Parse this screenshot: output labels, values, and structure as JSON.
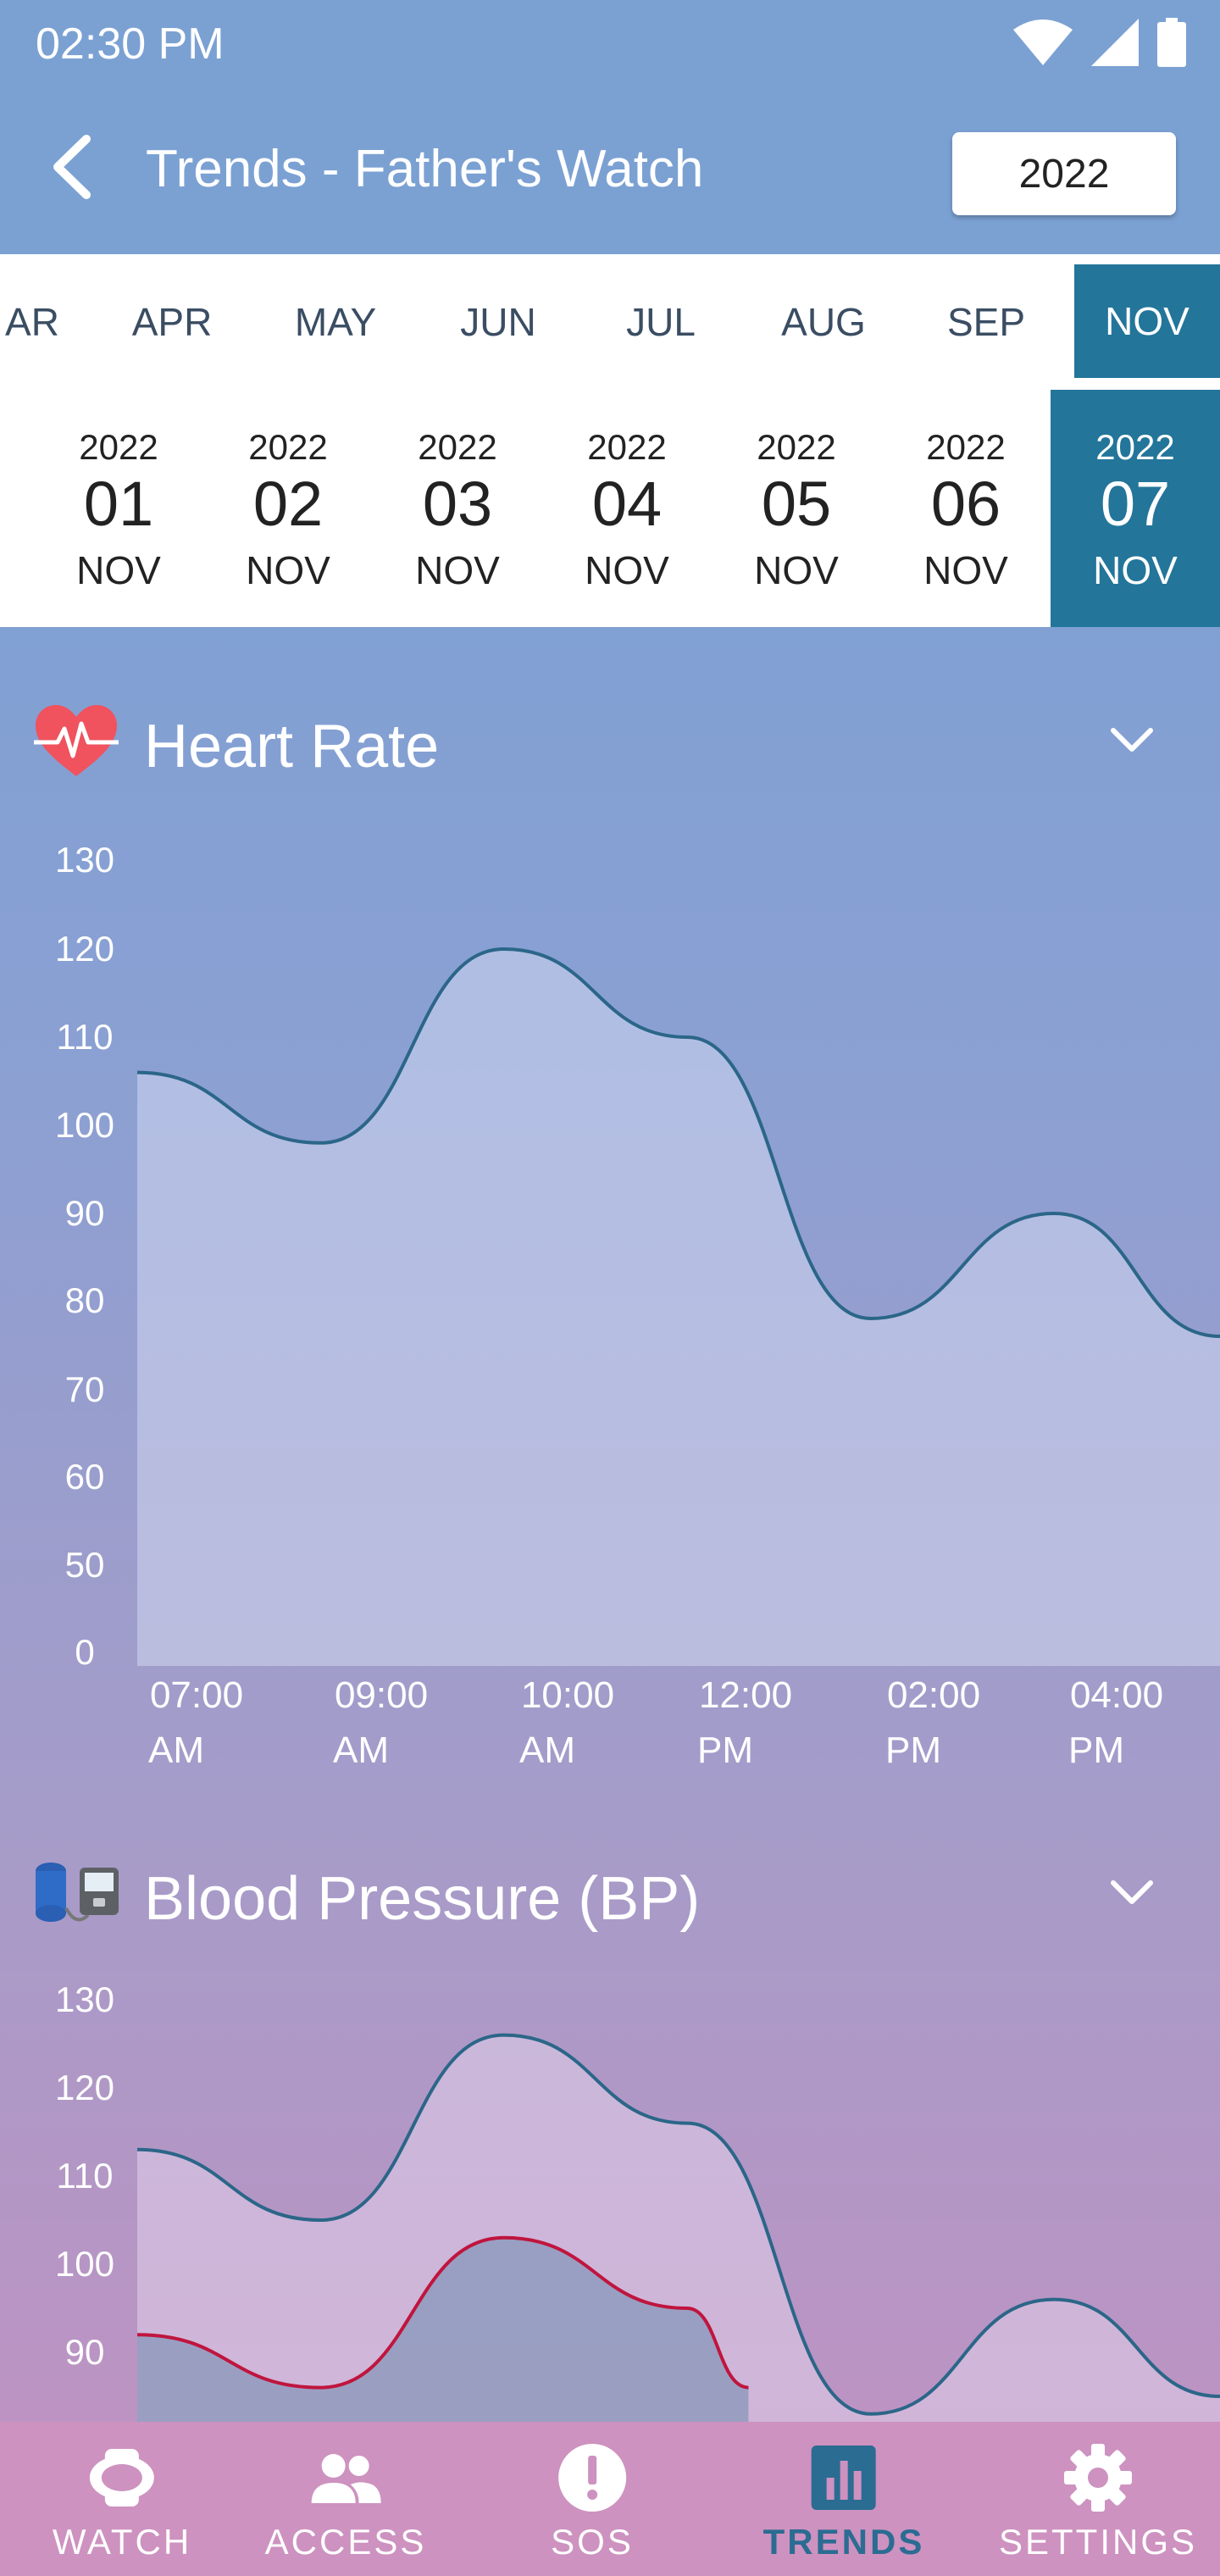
{
  "status_bar": {
    "time": "02:30 PM"
  },
  "header": {
    "title": "Trends - Father's Watch",
    "year": "2022"
  },
  "months": [
    {
      "label": "AR",
      "selected": false
    },
    {
      "label": "APR",
      "selected": false
    },
    {
      "label": "MAY",
      "selected": false
    },
    {
      "label": "JUN",
      "selected": false
    },
    {
      "label": "JUL",
      "selected": false
    },
    {
      "label": "AUG",
      "selected": false
    },
    {
      "label": "SEP",
      "selected": false
    },
    {
      "label": "NOV",
      "selected": true
    }
  ],
  "days": [
    {
      "year": "2022",
      "day": "01",
      "month": "NOV",
      "selected": false
    },
    {
      "year": "2022",
      "day": "02",
      "month": "NOV",
      "selected": false
    },
    {
      "year": "2022",
      "day": "03",
      "month": "NOV",
      "selected": false
    },
    {
      "year": "2022",
      "day": "04",
      "month": "NOV",
      "selected": false
    },
    {
      "year": "2022",
      "day": "05",
      "month": "NOV",
      "selected": false
    },
    {
      "year": "2022",
      "day": "06",
      "month": "NOV",
      "selected": false
    },
    {
      "year": "2022",
      "day": "07",
      "month": "NOV",
      "selected": true
    }
  ],
  "sections": {
    "heart_rate": {
      "label": "Heart Rate",
      "icon": "heart-pulse-icon"
    },
    "blood_pressure": {
      "label": "Blood Pressure (BP)",
      "icon": "blood-pressure-monitor-icon"
    }
  },
  "chart_data": [
    {
      "type": "area",
      "y_ticks": [
        "130",
        "120",
        "110",
        "100",
        "90",
        "80",
        "70",
        "60",
        "50",
        "0"
      ],
      "x_labels": [
        [
          "07:00",
          "AM"
        ],
        [
          "09:00",
          "AM"
        ],
        [
          "10:00",
          "AM"
        ],
        [
          "12:00",
          "PM"
        ],
        [
          "02:00",
          "PM"
        ],
        [
          "04:00",
          "PM"
        ]
      ],
      "series": [
        {
          "values": [
            {
              "x": 0,
              "y": 106
            },
            {
              "x": 2.1,
              "y": 98
            },
            {
              "x": 4.2,
              "y": 120
            },
            {
              "x": 6.3,
              "y": 110
            },
            {
              "x": 8.4,
              "y": 78
            },
            {
              "x": 10.5,
              "y": 90
            },
            {
              "x": 12.4,
              "y": 76
            }
          ]
        }
      ],
      "grid": false
    },
    {
      "type": "area",
      "y_ticks": [
        "130",
        "120",
        "110",
        "100",
        "90"
      ],
      "series": [
        {
          "values": [
            {
              "x": 0,
              "y": 113
            },
            {
              "x": 2.1,
              "y": 105
            },
            {
              "x": 4.2,
              "y": 126
            },
            {
              "x": 6.3,
              "y": 116
            },
            {
              "x": 8.4,
              "y": 83
            },
            {
              "x": 10.5,
              "y": 96
            },
            {
              "x": 12.4,
              "y": 85
            }
          ]
        },
        {
          "values": [
            {
              "x": 0,
              "y": 92
            },
            {
              "x": 2.1,
              "y": 86
            },
            {
              "x": 4.2,
              "y": 103
            },
            {
              "x": 6.3,
              "y": 95
            },
            {
              "x": 7.0,
              "y": 86
            }
          ]
        }
      ],
      "grid": false
    }
  ],
  "nav": [
    {
      "label": "WATCH",
      "icon": "watch-icon",
      "active": false
    },
    {
      "label": "ACCESS",
      "icon": "people-icon",
      "active": false
    },
    {
      "label": "SOS",
      "icon": "alert-icon",
      "active": false
    },
    {
      "label": "TRENDS",
      "icon": "bar-chart-icon",
      "active": true
    },
    {
      "label": "SETTINGS",
      "icon": "gear-icon",
      "active": false
    }
  ],
  "colors": {
    "accent": "#23759a",
    "line": "#2b6688",
    "bp_low_line": "#c0153e",
    "nav_bg": "#cd92c0"
  }
}
